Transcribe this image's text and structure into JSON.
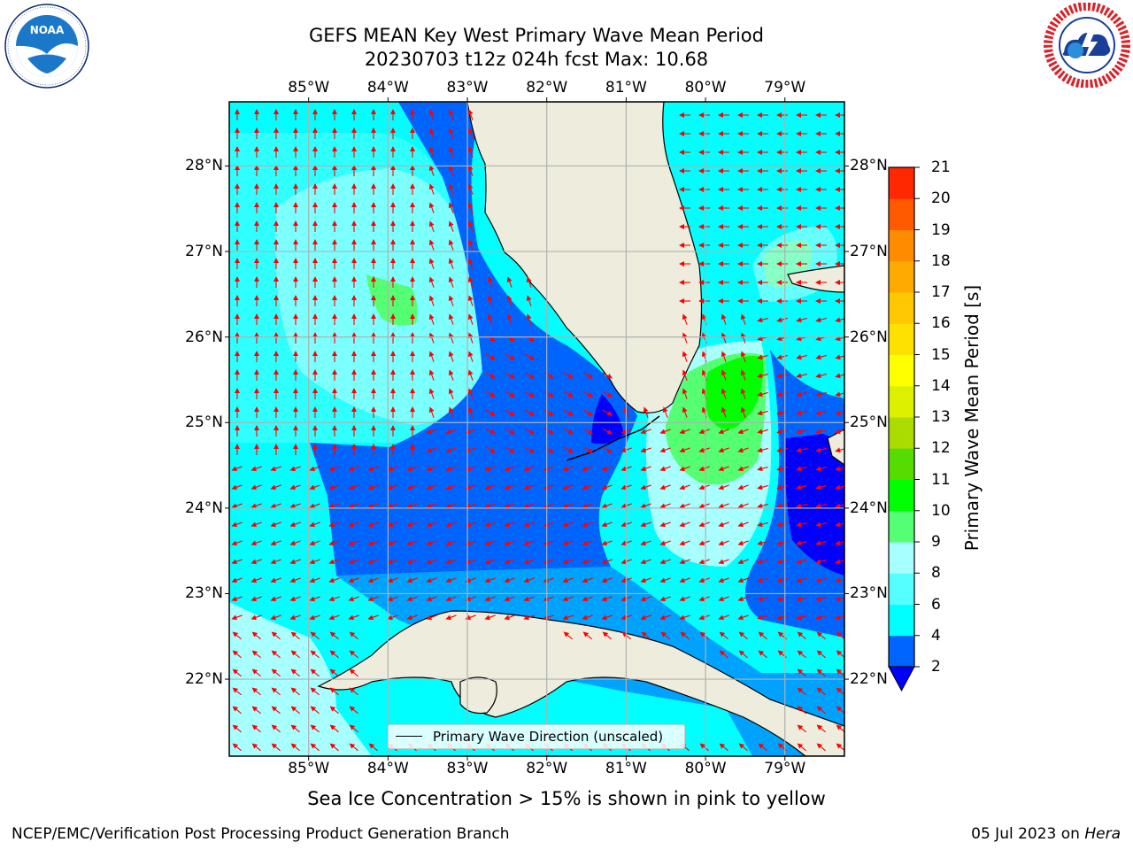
{
  "header": {
    "title_line1": "GEFS MEAN Key West Primary Wave Mean Period",
    "title_line2": "20230703 t12z 024h fcst   Max: 10.68"
  },
  "logos": {
    "left": {
      "name": "NOAA",
      "text": "NOAA",
      "ring_text": "NATIONAL OCEANIC AND ATMOSPHERIC ADMINISTRATION · U.S. DEPARTMENT OF COMMERCE"
    },
    "right": {
      "name": "National Weather Service",
      "ring_text": "NATIONAL WEATHER SERVICE"
    }
  },
  "map": {
    "longitude_ticks": [
      "85°W",
      "84°W",
      "83°W",
      "82°W",
      "81°W",
      "80°W",
      "79°W"
    ],
    "latitude_ticks": [
      "28°N",
      "27°N",
      "26°N",
      "25°N",
      "24°N",
      "23°N",
      "22°N"
    ],
    "longitude_range": [
      -86.0,
      -78.25
    ],
    "latitude_range": [
      21.1,
      28.75
    ],
    "ocean_color": "#00ffff",
    "land_color": "#eeecdc",
    "arrow_color": "#ff0000",
    "legend_label": "Primary Wave Direction (unscaled)"
  },
  "colorbar": {
    "label": "Primary Wave Mean Period [s]",
    "ticks": [
      "2",
      "4",
      "6",
      "8",
      "9",
      "10",
      "11",
      "12",
      "13",
      "14",
      "15",
      "16",
      "17",
      "18",
      "19",
      "20",
      "21"
    ],
    "colors": [
      "#0064ff",
      "#00ffff",
      "#55ffff",
      "#a8ffff",
      "#55ff73",
      "#00ff00",
      "#55dc00",
      "#aadc00",
      "#dcf000",
      "#ffff00",
      "#ffe100",
      "#ffc800",
      "#ffaa00",
      "#ff8c00",
      "#ff5a00",
      "#ff2800"
    ],
    "under_color": "#0000ff"
  },
  "subtitle": "Sea Ice Concentration > 15% is shown in pink to yellow",
  "footer": {
    "left": "NCEP/EMC/Verification Post Processing Product Generation Branch",
    "right_date": "05 Jul 2023 on ",
    "right_host": "Hera"
  }
}
